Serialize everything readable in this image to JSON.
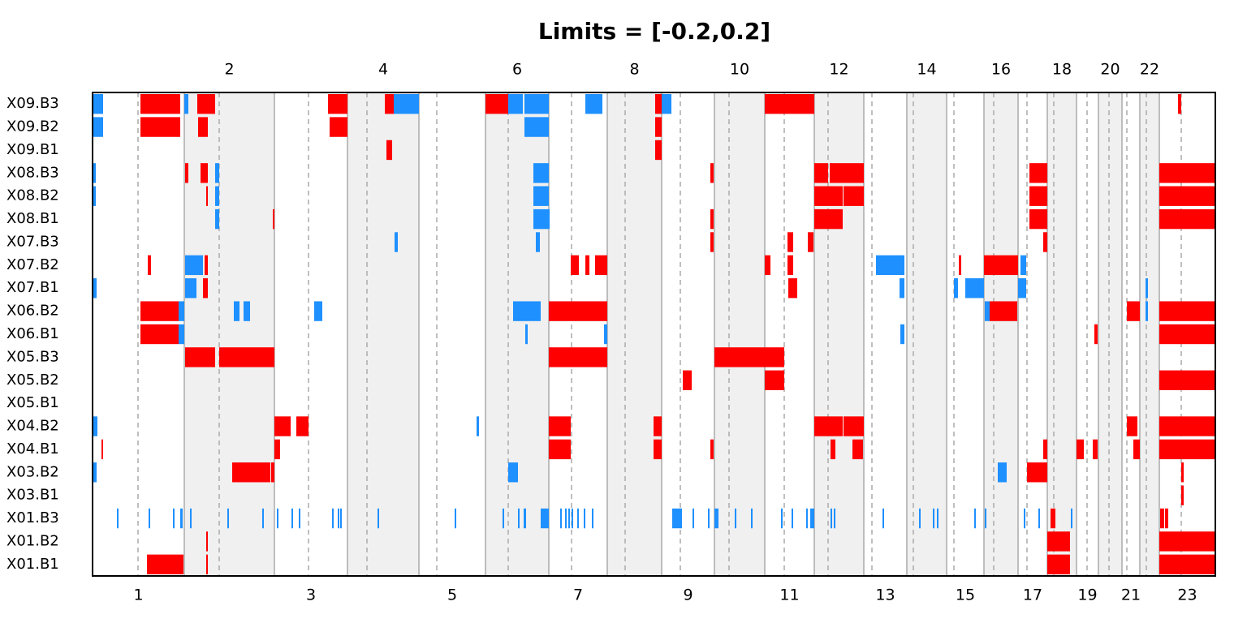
{
  "chart_data": {
    "type": "genome-heatmap",
    "title": "Limits = [-0.2,0.2]",
    "rows": [
      "X09.B3",
      "X09.B2",
      "X09.B1",
      "X08.B3",
      "X08.B2",
      "X08.B1",
      "X07.B3",
      "X07.B2",
      "X07.B1",
      "X06.B2",
      "X06.B1",
      "X05.B3",
      "X05.B2",
      "X05.B1",
      "X04.B2",
      "X04.B1",
      "X03.B2",
      "X03.B1",
      "X01.B3",
      "X01.B2",
      "X01.B1"
    ],
    "xlim": [
      114,
      1497
    ],
    "chromosomes": {
      "labels": [
        "1",
        "2",
        "3",
        "4",
        "5",
        "6",
        "7",
        "8",
        "9",
        "10",
        "11",
        "12",
        "13",
        "14",
        "15",
        "16",
        "17",
        "18",
        "19",
        "20",
        "21",
        "22",
        "23"
      ],
      "bounds": [
        114,
        227,
        338,
        428,
        516,
        598,
        676,
        748,
        815,
        880,
        942,
        1003,
        1064,
        1117,
        1166,
        1212,
        1254,
        1290,
        1326,
        1353,
        1382,
        1404,
        1428,
        1497
      ],
      "centromeres": [
        170,
        270,
        380,
        452,
        538,
        626,
        704,
        770,
        838,
        898,
        966,
        1020,
        1074,
        1125,
        1175,
        1224,
        1265,
        1298,
        1339,
        1366,
        1388,
        1412,
        1455
      ]
    },
    "series": [
      {
        "color": "#ff0000",
        "segments": [
          [
            0,
            173,
            222
          ],
          [
            0,
            243,
            265
          ],
          [
            0,
            404,
            428
          ],
          [
            0,
            474,
            485
          ],
          [
            0,
            598,
            626
          ],
          [
            0,
            807,
            815
          ],
          [
            0,
            942,
            1003
          ],
          [
            0,
            1451,
            1455
          ],
          [
            1,
            173,
            222
          ],
          [
            1,
            244,
            256
          ],
          [
            1,
            406,
            428
          ],
          [
            1,
            807,
            815
          ],
          [
            2,
            476,
            483
          ],
          [
            2,
            807,
            815
          ],
          [
            3,
            228,
            232
          ],
          [
            3,
            247,
            256
          ],
          [
            3,
            875,
            879
          ],
          [
            3,
            1003,
            1020
          ],
          [
            3,
            1022,
            1064
          ],
          [
            3,
            1268,
            1290
          ],
          [
            3,
            1428,
            1497
          ],
          [
            4,
            254,
            256
          ],
          [
            4,
            1003,
            1038
          ],
          [
            4,
            1039,
            1064
          ],
          [
            4,
            1268,
            1290
          ],
          [
            4,
            1428,
            1497
          ],
          [
            5,
            336,
            338
          ],
          [
            5,
            875,
            879
          ],
          [
            5,
            1003,
            1038
          ],
          [
            5,
            1268,
            1290
          ],
          [
            5,
            1428,
            1497
          ],
          [
            6,
            875,
            879
          ],
          [
            6,
            970,
            977
          ],
          [
            6,
            995,
            1002
          ],
          [
            6,
            1285,
            1290
          ],
          [
            7,
            182,
            186
          ],
          [
            7,
            252,
            256
          ],
          [
            7,
            703,
            713
          ],
          [
            7,
            721,
            726
          ],
          [
            7,
            733,
            748
          ],
          [
            7,
            942,
            949
          ],
          [
            7,
            970,
            977
          ],
          [
            7,
            1181,
            1184
          ],
          [
            7,
            1212,
            1254
          ],
          [
            8,
            250,
            256
          ],
          [
            8,
            971,
            982
          ],
          [
            9,
            173,
            220
          ],
          [
            9,
            676,
            748
          ],
          [
            9,
            1219,
            1253
          ],
          [
            9,
            1388,
            1404
          ],
          [
            9,
            1428,
            1497
          ],
          [
            10,
            173,
            220
          ],
          [
            10,
            1348,
            1352
          ],
          [
            10,
            1428,
            1497
          ],
          [
            11,
            228,
            265
          ],
          [
            11,
            270,
            338
          ],
          [
            11,
            676,
            748
          ],
          [
            11,
            880,
            966
          ],
          [
            12,
            841,
            852
          ],
          [
            12,
            942,
            966
          ],
          [
            12,
            1428,
            1497
          ],
          [
            14,
            338,
            358
          ],
          [
            14,
            365,
            380
          ],
          [
            14,
            676,
            703
          ],
          [
            14,
            805,
            815
          ],
          [
            14,
            1003,
            1038
          ],
          [
            14,
            1039,
            1064
          ],
          [
            14,
            1388,
            1401
          ],
          [
            14,
            1428,
            1497
          ],
          [
            15,
            125,
            127
          ],
          [
            15,
            338,
            345
          ],
          [
            15,
            676,
            703
          ],
          [
            15,
            805,
            815
          ],
          [
            15,
            875,
            879
          ],
          [
            15,
            1023,
            1029
          ],
          [
            15,
            1050,
            1063
          ],
          [
            15,
            1285,
            1290
          ],
          [
            15,
            1326,
            1335
          ],
          [
            15,
            1346,
            1352
          ],
          [
            15,
            1396,
            1404
          ],
          [
            15,
            1428,
            1497
          ],
          [
            16,
            286,
            333
          ],
          [
            16,
            334,
            338
          ],
          [
            16,
            1265,
            1290
          ],
          [
            16,
            1455,
            1458
          ],
          [
            17,
            1455,
            1458
          ],
          [
            18,
            1294,
            1300
          ],
          [
            18,
            1429,
            1434
          ],
          [
            18,
            1435,
            1439
          ],
          [
            19,
            254,
            256
          ],
          [
            19,
            1290,
            1318
          ],
          [
            19,
            1428,
            1497
          ],
          [
            20,
            181,
            226
          ],
          [
            20,
            254,
            256
          ],
          [
            20,
            1290,
            1318
          ],
          [
            20,
            1428,
            1497
          ]
        ]
      },
      {
        "color": "#1e90ff",
        "segments": [
          [
            0,
            114,
            127
          ],
          [
            0,
            227,
            232
          ],
          [
            0,
            485,
            516
          ],
          [
            0,
            626,
            644
          ],
          [
            0,
            646,
            676
          ],
          [
            0,
            721,
            742
          ],
          [
            0,
            815,
            827
          ],
          [
            1,
            114,
            127
          ],
          [
            1,
            646,
            676
          ],
          [
            3,
            114,
            118
          ],
          [
            3,
            265,
            270
          ],
          [
            3,
            657,
            676
          ],
          [
            4,
            114,
            118
          ],
          [
            4,
            265,
            270
          ],
          [
            4,
            657,
            676
          ],
          [
            5,
            265,
            270
          ],
          [
            5,
            657,
            677
          ],
          [
            6,
            486,
            490
          ],
          [
            6,
            660,
            665
          ],
          [
            7,
            228,
            250
          ],
          [
            7,
            1079,
            1114
          ],
          [
            7,
            1257,
            1264
          ],
          [
            8,
            114,
            119
          ],
          [
            8,
            228,
            242
          ],
          [
            8,
            1108,
            1114
          ],
          [
            8,
            1175,
            1180
          ],
          [
            8,
            1189,
            1212
          ],
          [
            8,
            1254,
            1264
          ],
          [
            8,
            1411,
            1414
          ],
          [
            9,
            220,
            227
          ],
          [
            9,
            288,
            295
          ],
          [
            9,
            300,
            308
          ],
          [
            9,
            387,
            397
          ],
          [
            9,
            632,
            666
          ],
          [
            9,
            1213,
            1219
          ],
          [
            9,
            1411,
            1414
          ],
          [
            10,
            220,
            227
          ],
          [
            10,
            647,
            650
          ],
          [
            10,
            744,
            748
          ],
          [
            10,
            1109,
            1114
          ],
          [
            14,
            114,
            120
          ],
          [
            14,
            587,
            590
          ],
          [
            16,
            114,
            119
          ],
          [
            16,
            626,
            638
          ],
          [
            16,
            1229,
            1240
          ],
          [
            18,
            144,
            146
          ],
          [
            18,
            183,
            185
          ],
          [
            18,
            213,
            215
          ],
          [
            18,
            222,
            225
          ],
          [
            18,
            234,
            236
          ],
          [
            18,
            280,
            282
          ],
          [
            18,
            323,
            325
          ],
          [
            18,
            341,
            343
          ],
          [
            18,
            359,
            361
          ],
          [
            18,
            368,
            370
          ],
          [
            18,
            409,
            411
          ],
          [
            18,
            416,
            418
          ],
          [
            18,
            419,
            421
          ],
          [
            18,
            465,
            467
          ],
          [
            18,
            560,
            562
          ],
          [
            18,
            619,
            621
          ],
          [
            18,
            638,
            640
          ],
          [
            18,
            645,
            648
          ],
          [
            18,
            666,
            676
          ],
          [
            18,
            690,
            692
          ],
          [
            18,
            696,
            698
          ],
          [
            18,
            700,
            702
          ],
          [
            18,
            704,
            706
          ],
          [
            18,
            711,
            713
          ],
          [
            18,
            719,
            721
          ],
          [
            18,
            729,
            731
          ],
          [
            18,
            828,
            840
          ],
          [
            18,
            853,
            855
          ],
          [
            18,
            872,
            874
          ],
          [
            18,
            880,
            885
          ],
          [
            18,
            905,
            907
          ],
          [
            18,
            925,
            927
          ],
          [
            18,
            962,
            964
          ],
          [
            18,
            975,
            977
          ],
          [
            18,
            993,
            995
          ],
          [
            18,
            998,
            1003
          ],
          [
            18,
            1023,
            1025
          ],
          [
            18,
            1027,
            1029
          ],
          [
            18,
            1087,
            1089
          ],
          [
            18,
            1132,
            1134
          ],
          [
            18,
            1149,
            1151
          ],
          [
            18,
            1154,
            1156
          ],
          [
            18,
            1200,
            1202
          ],
          [
            18,
            1213,
            1215
          ],
          [
            18,
            1261,
            1263
          ],
          [
            18,
            1279,
            1281
          ],
          [
            18,
            1319,
            1321
          ]
        ]
      }
    ]
  }
}
